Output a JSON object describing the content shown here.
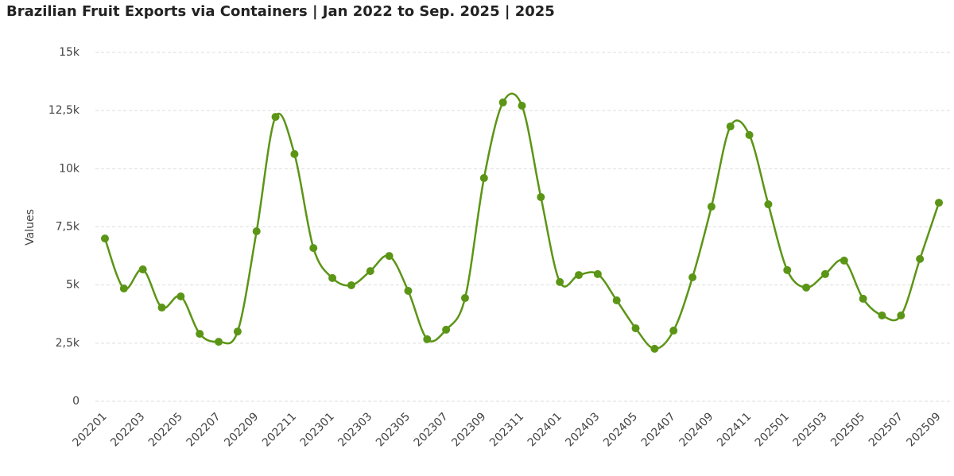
{
  "chart_data": {
    "type": "line",
    "title": "Brazilian Fruit Exports via Containers | Jan 2022 to Sep. 2025 | 2025",
    "y_label": "Values",
    "categories": [
      "202201",
      null,
      "202203",
      null,
      "202205",
      null,
      "202207",
      null,
      "202209",
      null,
      "202211",
      null,
      "202301",
      null,
      "202303",
      null,
      "202305",
      null,
      "202307",
      null,
      "202309",
      null,
      "202311",
      null,
      "202401",
      null,
      "202403",
      null,
      "202405",
      null,
      "202407",
      null,
      "202409",
      null,
      "202411",
      null,
      "202501",
      null,
      "202503",
      null,
      "202505",
      null,
      "202507",
      null,
      "202509"
    ],
    "values": [
      7000,
      4850,
      5670,
      4030,
      4510,
      2900,
      2560,
      3000,
      7310,
      12230,
      10630,
      6590,
      5300,
      4990,
      5600,
      6250,
      4750,
      2670,
      3080,
      4440,
      9600,
      12850,
      12710,
      8780,
      5130,
      5430,
      5470,
      4340,
      3140,
      2260,
      3040,
      5330,
      8370,
      11820,
      11450,
      8470,
      5640,
      4890,
      5470,
      6050,
      4410,
      3690,
      3690,
      6120,
      8540
    ],
    "color": "#5b9516",
    "ylim": [
      0,
      15000
    ],
    "yticks": [
      0,
      {
        "value": 2500,
        "label": "2,5k"
      },
      {
        "value": 5000,
        "label": "5k"
      },
      {
        "value": 7500,
        "label": "7,5k"
      },
      {
        "value": 10000,
        "label": "10k"
      },
      {
        "value": 12500,
        "label": "12,5k"
      },
      {
        "value": 15000,
        "label": "15k"
      }
    ],
    "grid": true
  }
}
